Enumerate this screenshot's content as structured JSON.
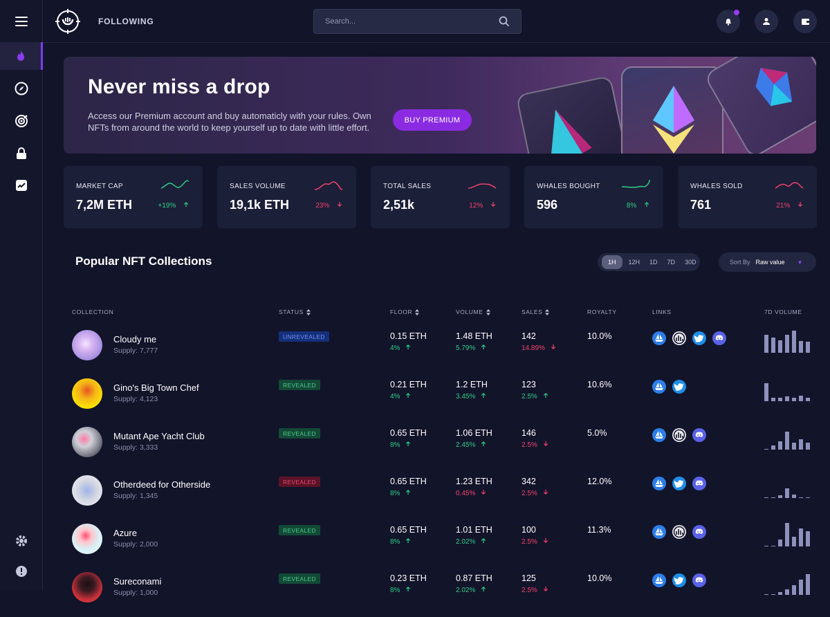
{
  "nav": {
    "following": "FOLLOWING",
    "search_placeholder": "Search..."
  },
  "banner": {
    "title": "Never miss a drop",
    "text": "Access our Premium account and buy automaticly with your rules. Own NFTs from around the world to keep yourself up to date with little effort.",
    "button": "BUY PREMIUM"
  },
  "stats": [
    {
      "label": "MARKET CAP",
      "value": "7,2M ETH",
      "change": "+19%",
      "dir": "up",
      "color": "#2ecf86"
    },
    {
      "label": "SALES VOLUME",
      "value": "19,1k ETH",
      "change": "23%",
      "dir": "down",
      "color": "#f2436b"
    },
    {
      "label": "TOTAL SALES",
      "value": "2,51k",
      "change": "12%",
      "dir": "down",
      "color": "#f2436b"
    },
    {
      "label": "WHALES BOUGHT",
      "value": "596",
      "change": "8%",
      "dir": "up",
      "color": "#2ecf86"
    },
    {
      "label": "WHALES SOLD",
      "value": "761",
      "change": "21%",
      "dir": "down",
      "color": "#f2436b"
    }
  ],
  "collections_title": "Popular NFT Collections",
  "timeframes": [
    "1H",
    "12H",
    "1D",
    "7D",
    "30D"
  ],
  "sort": {
    "label": "Sort By",
    "value": "Raw value"
  },
  "headers": {
    "collection": "COLLECTION",
    "status": "STATUS",
    "floor": "FLOOR",
    "volume": "VOLUME",
    "sales": "SALES",
    "royalty": "ROYALTY",
    "links": "LINKS",
    "vol7d": "7D VOLUME"
  },
  "rows": [
    {
      "name": "Cloudy me",
      "supply": "Supply: 7,777",
      "status": "UNREVEALED",
      "status_kind": "unrev",
      "floor": "0.15 ETH",
      "floor_chg": "4%",
      "floor_dir": "up",
      "volume": "1.48 ETH",
      "vol_chg": "5.79%",
      "vol_dir": "up",
      "sales": "142",
      "sales_chg": "14.89%",
      "sales_dir": "down",
      "royalty": "10.0%",
      "links": [
        "opensea",
        "looksrare",
        "twitter",
        "discord"
      ],
      "vol7d": [
        26,
        22,
        18,
        26,
        32,
        17,
        16
      ]
    },
    {
      "name": "Gino's Big Town Chef",
      "supply": "Supply: 4,123",
      "status": "REVEALED",
      "status_kind": "rev",
      "floor": "0.21 ETH",
      "floor_chg": "4%",
      "floor_dir": "up",
      "volume": "1.2 ETH",
      "vol_chg": "3.45%",
      "vol_dir": "up",
      "sales": "123",
      "sales_chg": "2.5%",
      "sales_dir": "up",
      "royalty": "10.6%",
      "links": [
        "opensea",
        "twitter"
      ],
      "vol7d": [
        26,
        5,
        5,
        7,
        5,
        8,
        5
      ]
    },
    {
      "name": "Mutant Ape Yacht Club",
      "supply": "Supply: 3,333",
      "status": "REVEALED",
      "status_kind": "rev",
      "floor": "0.65 ETH",
      "floor_chg": "8%",
      "floor_dir": "up",
      "volume": "1.06 ETH",
      "vol_chg": "2.45%",
      "vol_dir": "up",
      "sales": "146",
      "sales_chg": "2.5%",
      "sales_dir": "down",
      "royalty": "5.0%",
      "links": [
        "opensea",
        "looksrare",
        "discord"
      ],
      "vol7d": [
        1,
        6,
        12,
        26,
        10,
        15,
        10
      ]
    },
    {
      "name": "Otherdeed for Otherside",
      "supply": "Supply: 1,345",
      "status": "REVEALED",
      "status_kind": "revred",
      "floor": "0.65 ETH",
      "floor_chg": "8%",
      "floor_dir": "up",
      "volume": "1.23 ETH",
      "vol_chg": "0.45%",
      "vol_dir": "down",
      "sales": "342",
      "sales_chg": "2.5%",
      "sales_dir": "down",
      "royalty": "12.0%",
      "links": [
        "opensea",
        "twitter",
        "discord"
      ],
      "vol7d": [
        1,
        1,
        4,
        14,
        5,
        1,
        1
      ]
    },
    {
      "name": "Azure",
      "supply": "Supply: 2,000",
      "status": "REVEALED",
      "status_kind": "rev",
      "floor": "0.65 ETH",
      "floor_chg": "8%",
      "floor_dir": "up",
      "volume": "1.01 ETH",
      "vol_chg": "2.02%",
      "vol_dir": "up",
      "sales": "100",
      "sales_chg": "2.5%",
      "sales_dir": "down",
      "royalty": "11.3%",
      "links": [
        "opensea",
        "looksrare",
        "discord"
      ],
      "vol7d": [
        1,
        1,
        10,
        34,
        14,
        26,
        22
      ]
    },
    {
      "name": "Sureconami",
      "supply": "Supply: 1,000",
      "status": "REVEALED",
      "status_kind": "rev",
      "floor": "0.23 ETH",
      "floor_chg": "8%",
      "floor_dir": "up",
      "volume": "0.87 ETH",
      "vol_chg": "2.02%",
      "vol_dir": "up",
      "sales": "125",
      "sales_chg": "2.5%",
      "sales_dir": "down",
      "royalty": "10.0%",
      "links": [
        "opensea",
        "twitter",
        "discord"
      ],
      "vol7d": [
        1,
        1,
        4,
        8,
        14,
        22,
        30
      ]
    }
  ]
}
